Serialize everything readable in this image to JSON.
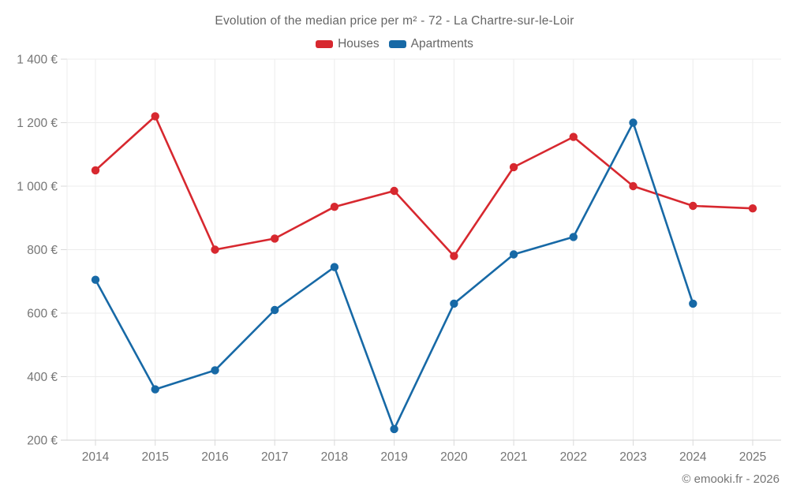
{
  "chart_data": {
    "type": "line",
    "title": "Evolution of the median price per m² - 72 - La Chartre-sur-le-Loir",
    "xlabel": "",
    "ylabel": "",
    "categories": [
      "2014",
      "2015",
      "2016",
      "2017",
      "2018",
      "2019",
      "2020",
      "2021",
      "2022",
      "2023",
      "2024",
      "2025"
    ],
    "series": [
      {
        "name": "Houses",
        "color": "#d7282f",
        "values": [
          1050,
          1220,
          800,
          835,
          935,
          985,
          780,
          1060,
          1155,
          1000,
          938,
          930
        ]
      },
      {
        "name": "Apartments",
        "color": "#1769a6",
        "values": [
          705,
          360,
          420,
          610,
          745,
          235,
          630,
          785,
          840,
          1200,
          630,
          null
        ]
      }
    ],
    "ylim": [
      200,
      1400
    ],
    "y_ticks": [
      200,
      400,
      600,
      800,
      1000,
      1200,
      1400
    ],
    "y_tick_labels": [
      "200 €",
      "400 €",
      "600 €",
      "800 €",
      "1 000 €",
      "1 200 €",
      "1 400 €"
    ],
    "grid": true,
    "legend_position": "top",
    "marker": "circle",
    "currency": "€"
  },
  "footer": {
    "copyright": "© emooki.fr - 2026"
  },
  "style": {
    "grid_color": "#ececec",
    "axis_color": "#d9d9d9",
    "label_color": "#757575",
    "title_color": "#666666",
    "houses_color": "#d7282f",
    "apartments_color": "#1769a6"
  }
}
